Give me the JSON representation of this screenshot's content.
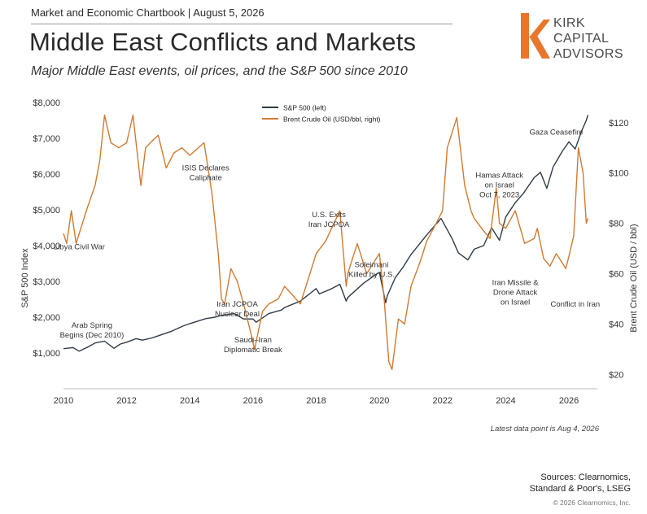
{
  "header": {
    "label": "Market and Economic Chartbook | August 5, 2026",
    "title": "Middle East Conflicts and Markets",
    "subtitle": "Major Middle East events, oil prices, and the S&P 500 since 2010"
  },
  "logo": {
    "line1": "KIRK",
    "line2": "CAPITAL",
    "line3": "ADVISORS",
    "accent_color": "#E8762B",
    "icon_name": "kirk-k-logo-icon"
  },
  "footer": {
    "latest": "Latest data point is Aug 4, 2026",
    "sources_line1": "Sources: Clearnomics,",
    "sources_line2": "Standard & Poor's, LSEG",
    "copyright": "© 2026 Clearnomics, Inc."
  },
  "chart_data": {
    "type": "line",
    "title": "",
    "xlabel": "",
    "ylabel_left": "S&P 500 Index",
    "ylabel_right": "Brent Crude Oil (USD / bbl)",
    "xlim": [
      2010,
      2026.9
    ],
    "ylim_left": [
      0,
      8000
    ],
    "ylim_right": [
      14.3,
      128
    ],
    "x_ticks": [
      2010,
      2012,
      2014,
      2016,
      2018,
      2020,
      2022,
      2024,
      2026
    ],
    "x_tick_labels": [
      "2010",
      "2012",
      "2014",
      "2016",
      "2018",
      "2020",
      "2022",
      "2024",
      "2026"
    ],
    "y_left_ticks": [
      1000,
      2000,
      3000,
      4000,
      5000,
      6000,
      7000,
      8000
    ],
    "y_left_tick_labels": [
      "$1,000",
      "$2,000",
      "$3,000",
      "$4,000",
      "$5,000",
      "$6,000",
      "$7,000",
      "$8,000"
    ],
    "y_right_ticks": [
      20,
      40,
      60,
      80,
      100,
      120
    ],
    "y_right_tick_labels": [
      "$20",
      "$40",
      "$60",
      "$80",
      "$100",
      "$120"
    ],
    "grid": false,
    "legend_position": "top-center",
    "series": [
      {
        "name": "S&P 500 (left)",
        "axis": "left",
        "color": "#2F3B47",
        "x": [
          2010.0,
          2010.3,
          2010.5,
          2010.8,
          2011.0,
          2011.3,
          2011.6,
          2011.8,
          2012.0,
          2012.3,
          2012.5,
          2012.8,
          2013.0,
          2013.4,
          2013.8,
          2014.0,
          2014.5,
          2014.8,
          2015.0,
          2015.4,
          2015.7,
          2016.0,
          2016.1,
          2016.5,
          2016.9,
          2017.0,
          2017.5,
          2018.0,
          2018.1,
          2018.5,
          2018.75,
          2018.95,
          2019.0,
          2019.5,
          2019.9,
          2020.0,
          2020.2,
          2020.25,
          2020.5,
          2020.75,
          2021.0,
          2021.5,
          2021.95,
          2022.3,
          2022.5,
          2022.8,
          2023.0,
          2023.3,
          2023.55,
          2023.8,
          2024.0,
          2024.3,
          2024.55,
          2024.9,
          2025.1,
          2025.3,
          2025.5,
          2025.8,
          2026.0,
          2026.2,
          2026.4,
          2026.55,
          2026.6
        ],
        "values": [
          1120,
          1150,
          1050,
          1180,
          1280,
          1330,
          1130,
          1250,
          1300,
          1400,
          1360,
          1420,
          1480,
          1600,
          1760,
          1820,
          1960,
          2000,
          2050,
          2100,
          1950,
          1950,
          1860,
          2100,
          2200,
          2270,
          2450,
          2800,
          2650,
          2800,
          2920,
          2450,
          2550,
          2950,
          3200,
          3250,
          2400,
          2600,
          3100,
          3400,
          3750,
          4300,
          4760,
          4200,
          3800,
          3600,
          3900,
          4000,
          4500,
          4150,
          4800,
          5200,
          5450,
          5900,
          6050,
          5600,
          6200,
          6650,
          6900,
          6700,
          7200,
          7500,
          7650
        ]
      },
      {
        "name": "Brent Crude Oil (USD/bbl, right)",
        "axis": "right",
        "color": "#D07B32",
        "x": [
          2010.0,
          2010.1,
          2010.25,
          2010.4,
          2010.55,
          2010.75,
          2011.0,
          2011.15,
          2011.3,
          2011.5,
          2011.75,
          2012.0,
          2012.2,
          2012.45,
          2012.6,
          2012.75,
          2013.0,
          2013.25,
          2013.5,
          2013.75,
          2014.0,
          2014.45,
          2014.7,
          2014.9,
          2015.0,
          2015.1,
          2015.3,
          2015.5,
          2015.7,
          2015.9,
          2016.05,
          2016.3,
          2016.5,
          2016.8,
          2017.0,
          2017.5,
          2017.8,
          2018.0,
          2018.3,
          2018.75,
          2018.95,
          2019.0,
          2019.3,
          2019.6,
          2019.9,
          2020.0,
          2020.15,
          2020.3,
          2020.4,
          2020.6,
          2020.8,
          2021.0,
          2021.3,
          2021.5,
          2021.8,
          2022.0,
          2022.15,
          2022.45,
          2022.7,
          2022.9,
          2023.0,
          2023.3,
          2023.5,
          2023.7,
          2023.8,
          2024.0,
          2024.3,
          2024.6,
          2024.9,
          2025.0,
          2025.2,
          2025.4,
          2025.6,
          2025.9,
          2026.0,
          2026.15,
          2026.3,
          2026.45,
          2026.55,
          2026.6
        ],
        "values": [
          76,
          72,
          85,
          72,
          78,
          86,
          95,
          105,
          123,
          112,
          110,
          112,
          123,
          95,
          110,
          112,
          115,
          102,
          108,
          110,
          107,
          112,
          92,
          68,
          50,
          48,
          62,
          57,
          48,
          38,
          30,
          45,
          48,
          50,
          55,
          48,
          60,
          68,
          73,
          85,
          55,
          60,
          72,
          60,
          66,
          68,
          50,
          25,
          22,
          42,
          40,
          55,
          65,
          73,
          80,
          85,
          110,
          122,
          95,
          85,
          82,
          77,
          74,
          94,
          80,
          78,
          85,
          72,
          74,
          78,
          66,
          63,
          68,
          62,
          67,
          75,
          110,
          100,
          80,
          82
        ]
      }
    ],
    "annotations": [
      {
        "text": "Libya Civil War",
        "x": 2010.5,
        "y": 3900
      },
      {
        "text": "Arab Spring Begins (Dec 2010)",
        "x": 2010.9,
        "y": 1700
      },
      {
        "text": "ISIS Declares Caliphate",
        "x": 2014.5,
        "y": 6100
      },
      {
        "text": "Iran JCPOA Nuclear Deal",
        "x": 2015.5,
        "y": 2300
      },
      {
        "text": "Saudi–Iran Diplomatic Break",
        "x": 2016.0,
        "y": 1300
      },
      {
        "text": "U.S. Exits Iran JCPOA",
        "x": 2018.4,
        "y": 4800
      },
      {
        "text": "Soleimani Killed by U.S.",
        "x": 2019.75,
        "y": 3400
      },
      {
        "text": "Hamas Attack on Israel Oct 7, 2023",
        "x": 2023.8,
        "y": 5900
      },
      {
        "text": "Iran Missile & Drone Attack on Israel",
        "x": 2024.3,
        "y": 2900
      },
      {
        "text": "Gaza Ceasefire",
        "x": 2025.6,
        "y": 7100
      },
      {
        "text": "Conflict in Iran",
        "x": 2026.2,
        "y": 2300
      }
    ]
  }
}
